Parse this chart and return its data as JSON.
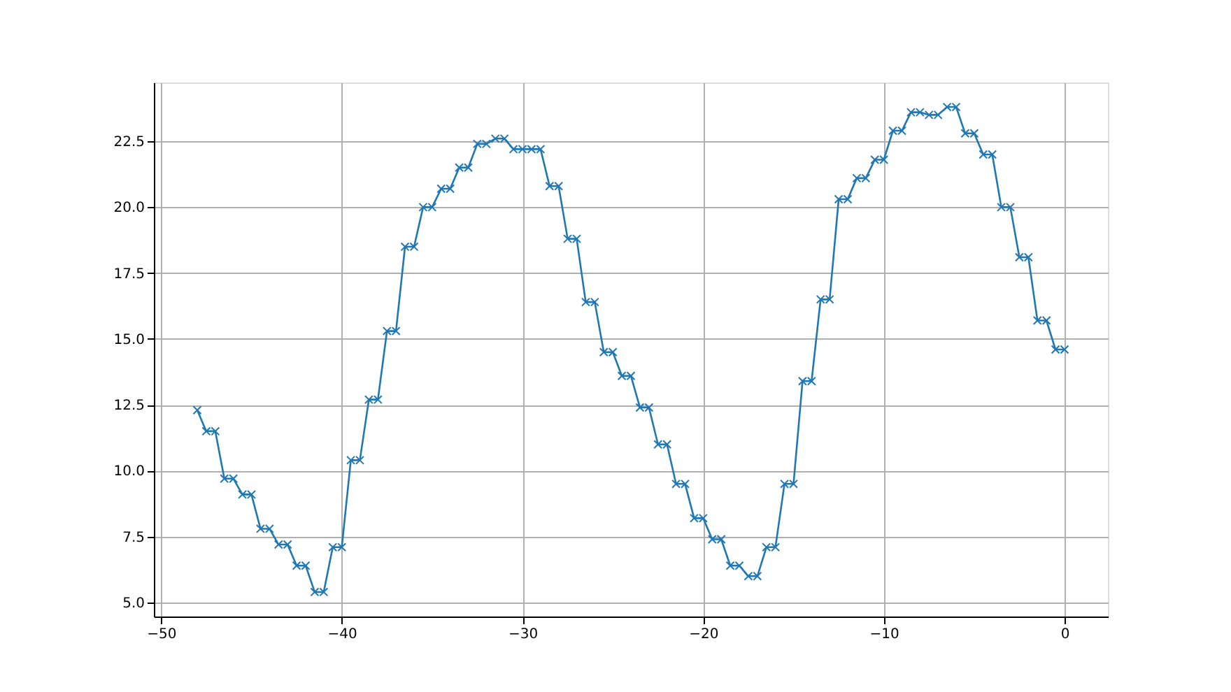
{
  "chart_data": {
    "type": "line",
    "x": [
      -48,
      -47.5,
      -47,
      -46.5,
      -46,
      -45.5,
      -45,
      -44.5,
      -44,
      -43.5,
      -43,
      -42.5,
      -42,
      -41.5,
      -41,
      -40.5,
      -40,
      -39.5,
      -39,
      -38.5,
      -38,
      -37.5,
      -37,
      -36.5,
      -36,
      -35.5,
      -35,
      -34.5,
      -34,
      -33.5,
      -33,
      -32.5,
      -32,
      -31.5,
      -31,
      -30.5,
      -30,
      -29.5,
      -29,
      -28.5,
      -28,
      -27.5,
      -27,
      -26.5,
      -26,
      -25.5,
      -25,
      -24.5,
      -24,
      -23.5,
      -23,
      -22.5,
      -22,
      -21.5,
      -21,
      -20.5,
      -20,
      -19.5,
      -19,
      -18.5,
      -18,
      -17.5,
      -17,
      -16.5,
      -16,
      -15.5,
      -15,
      -14.5,
      -14,
      -13.5,
      -13,
      -12.5,
      -12,
      -11.5,
      -11,
      -10.5,
      -10,
      -9.5,
      -9,
      -8.5,
      -8,
      -7.5,
      -7,
      -6.5,
      -6,
      -5.5,
      -5,
      -4.5,
      -4,
      -3.5,
      -3,
      -2.5,
      -2,
      -1.5,
      -1,
      -0.5,
      0
    ],
    "series": [
      {
        "color": "#1f77b4",
        "values": [
          12.3,
          11.5,
          11.5,
          9.7,
          9.7,
          9.1,
          9.1,
          7.8,
          7.8,
          7.2,
          7.2,
          6.4,
          6.4,
          5.4,
          5.4,
          7.1,
          7.1,
          10.4,
          10.4,
          12.7,
          12.7,
          15.3,
          15.3,
          18.5,
          18.5,
          20.0,
          20.0,
          20.7,
          20.7,
          21.5,
          21.5,
          22.4,
          22.4,
          22.6,
          22.6,
          22.2,
          22.2,
          22.2,
          22.2,
          20.8,
          20.8,
          18.8,
          18.8,
          16.4,
          16.4,
          14.5,
          14.5,
          13.6,
          13.6,
          12.4,
          12.4,
          11.0,
          11.0,
          9.5,
          9.5,
          8.2,
          8.2,
          7.4,
          7.4,
          6.4,
          6.4,
          6.0,
          6.0,
          7.1,
          7.1,
          9.5,
          9.5,
          13.4,
          13.4,
          16.5,
          16.5,
          20.3,
          20.3,
          21.1,
          21.1,
          21.8,
          21.8,
          22.9,
          22.9,
          23.6,
          23.6,
          23.5,
          23.5,
          23.8,
          23.8,
          22.8,
          22.8,
          22.0,
          22.0,
          20.0,
          20.0,
          18.1,
          18.1,
          15.7,
          15.7,
          14.6,
          14.6
        ]
      }
    ],
    "xlim": [
      -50.4,
      2.4
    ],
    "xticks": [
      -50,
      -40,
      -30,
      -20,
      -10,
      0
    ],
    "ylim": [
      4.47,
      24.73
    ],
    "yticks": [
      {
        "value": 5,
        "label": "5.0"
      },
      {
        "value": 7.5,
        "label": "7.5"
      },
      {
        "value": 10,
        "label": "10.0"
      },
      {
        "value": 12.5,
        "label": "12.5"
      },
      {
        "value": 15,
        "label": "15.0"
      },
      {
        "value": 17.5,
        "label": "17.5"
      },
      {
        "value": 20,
        "label": "20.0"
      },
      {
        "value": 22.5,
        "label": "22.5"
      }
    ],
    "grid": true,
    "marker": "cross",
    "line_style": "solid"
  }
}
